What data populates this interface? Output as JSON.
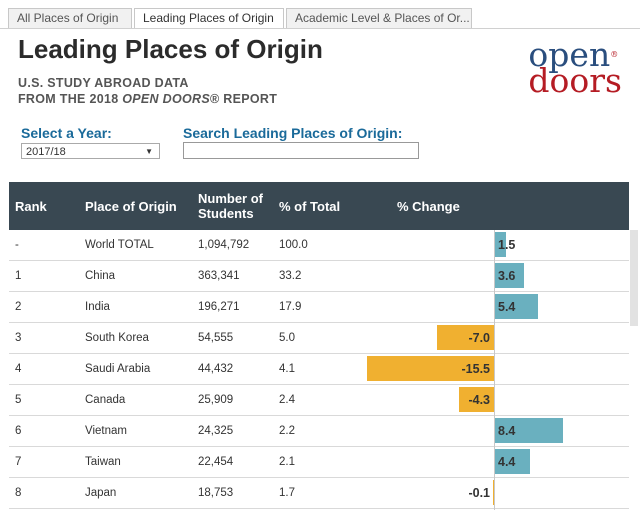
{
  "tabs": [
    "All Places of Origin",
    "Leading Places of Origin",
    "Academic Level & Places of Or..."
  ],
  "title": "Leading Places of Origin",
  "subtitle_line1": "U.S. STUDY ABROAD DATA",
  "subtitle_line2_prefix": "FROM THE 2018 ",
  "subtitle_line2_italic": "OPEN DOORS",
  "subtitle_line2_suffix": "® REPORT",
  "logo": {
    "line1": "open",
    "line2": "doors",
    "reg": "®"
  },
  "year_control": {
    "label": "Select a Year:",
    "value": "2017/18"
  },
  "search_control": {
    "label": "Search Leading Places of Origin:",
    "value": ""
  },
  "table": {
    "headers": {
      "rank": "Rank",
      "origin": "Place of Origin",
      "students_1": "Number of",
      "students_2": "Students",
      "pct_total": "% of Total",
      "pct_change": "% Change"
    },
    "rows": [
      {
        "rank": "-",
        "origin": "World TOTAL",
        "students": "1,094,792",
        "pct_total": "100.0",
        "pct_change": 1.5,
        "change_label": "1.5"
      },
      {
        "rank": "1",
        "origin": "China",
        "students": "363,341",
        "pct_total": "33.2",
        "pct_change": 3.6,
        "change_label": "3.6"
      },
      {
        "rank": "2",
        "origin": "India",
        "students": "196,271",
        "pct_total": "17.9",
        "pct_change": 5.4,
        "change_label": "5.4"
      },
      {
        "rank": "3",
        "origin": "South Korea",
        "students": "54,555",
        "pct_total": "5.0",
        "pct_change": -7.0,
        "change_label": "-7.0"
      },
      {
        "rank": "4",
        "origin": "Saudi Arabia",
        "students": "44,432",
        "pct_total": "4.1",
        "pct_change": -15.5,
        "change_label": "-15.5"
      },
      {
        "rank": "5",
        "origin": "Canada",
        "students": "25,909",
        "pct_total": "2.4",
        "pct_change": -4.3,
        "change_label": "-4.3"
      },
      {
        "rank": "6",
        "origin": "Vietnam",
        "students": "24,325",
        "pct_total": "2.2",
        "pct_change": 8.4,
        "change_label": "8.4"
      },
      {
        "rank": "7",
        "origin": "Taiwan",
        "students": "22,454",
        "pct_total": "2.1",
        "pct_change": 4.4,
        "change_label": "4.4"
      },
      {
        "rank": "8",
        "origin": "Japan",
        "students": "18,753",
        "pct_total": "1.7",
        "pct_change": -0.1,
        "change_label": "-0.1"
      }
    ]
  },
  "colors": {
    "positive": "#6ab0bf",
    "negative": "#f0b030",
    "header_bg": "#394852"
  }
}
